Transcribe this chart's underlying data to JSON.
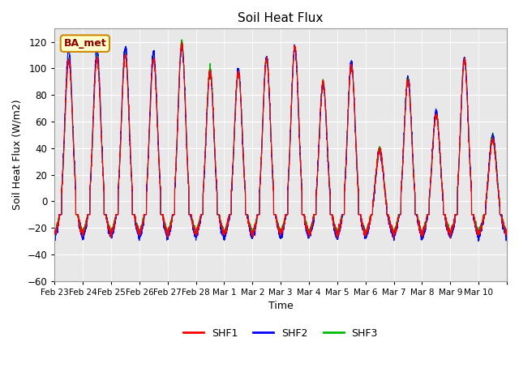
{
  "title": "Soil Heat Flux",
  "xlabel": "Time",
  "ylabel": "Soil Heat Flux (W/m2)",
  "ylim": [
    -60,
    130
  ],
  "yticks": [
    -60,
    -40,
    -20,
    0,
    20,
    40,
    60,
    80,
    100,
    120
  ],
  "colors": {
    "SHF1": "#ff0000",
    "SHF2": "#0000ff",
    "SHF3": "#00bb00"
  },
  "legend_labels": [
    "SHF1",
    "SHF2",
    "SHF3"
  ],
  "annotation_text": "BA_met",
  "annotation_bg": "#ffffcc",
  "annotation_border": "#cc8800",
  "plot_bg": "#e8e8e8",
  "num_days": 16,
  "xtick_labels": [
    "Feb 23",
    "Feb 24",
    "Feb 25",
    "Feb 26",
    "Feb 27",
    "Feb 28",
    "Mar 1",
    "Mar 2",
    "Mar 3",
    "Mar 4",
    "Mar 5",
    "Mar 6",
    "Mar 7",
    "Mar 8",
    "Mar 9",
    "Mar 10"
  ],
  "linewidth": 0.8
}
